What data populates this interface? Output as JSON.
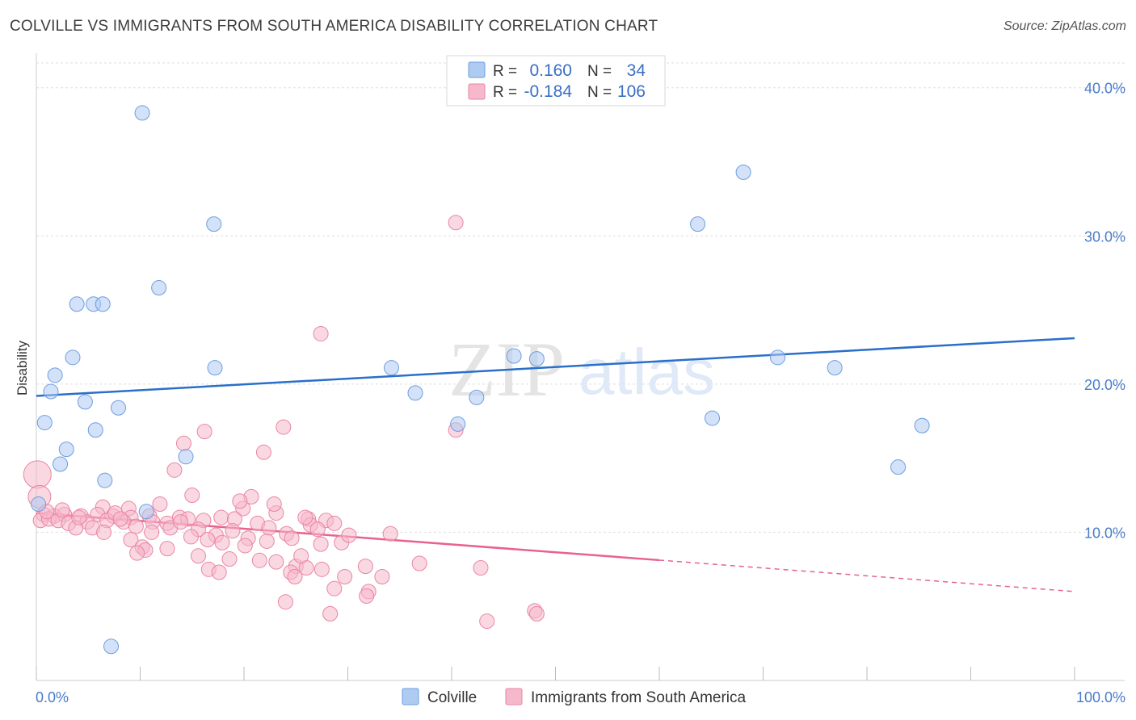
{
  "title": "COLVILLE VS IMMIGRANTS FROM SOUTH AMERICA DISABILITY CORRELATION CHART",
  "source": "Source: ZipAtlas.com",
  "watermark": "ZIPatlas",
  "legend": {
    "rows": [
      {
        "r_label": "R =",
        "r_value": "0.160",
        "n_label": "N =",
        "n_value": "34"
      },
      {
        "r_label": "R =",
        "r_value": "-0.184",
        "n_label": "N =",
        "n_value": "106"
      }
    ]
  },
  "colors": {
    "colville_fill": "#aecbf2",
    "colville_stroke": "#6d9ee0",
    "colville_line": "#2a6fc9",
    "immigrants_fill": "#f6b8cb",
    "immigrants_stroke": "#ea85a6",
    "immigrants_line": "#e8628f",
    "tick_text": "#4a7cc9",
    "grid": "#dedede"
  },
  "chart_data": {
    "type": "scatter",
    "title": "COLVILLE VS IMMIGRANTS FROM SOUTH AMERICA DISABILITY CORRELATION CHART",
    "xlabel": "",
    "ylabel": "Disability",
    "xlim": [
      0,
      100
    ],
    "ylim": [
      0,
      42
    ],
    "x_tick_labels": [
      "0.0%",
      "100.0%"
    ],
    "y_ticks": [
      10,
      20,
      30,
      40
    ],
    "y_tick_labels": [
      "10.0%",
      "20.0%",
      "30.0%",
      "40.0%"
    ],
    "grid": true,
    "legend_position": "top-center",
    "series": [
      {
        "name": "Colville",
        "r": 0.16,
        "n": 34,
        "trend": {
          "x": [
            0,
            100
          ],
          "y": [
            19.2,
            23.1
          ],
          "dashed_from": null
        },
        "points": [
          [
            10.2,
            38.3
          ],
          [
            68.1,
            34.3
          ],
          [
            17.1,
            30.8
          ],
          [
            63.7,
            30.8
          ],
          [
            11.8,
            26.5
          ],
          [
            3.9,
            25.4
          ],
          [
            5.5,
            25.4
          ],
          [
            6.4,
            25.4
          ],
          [
            3.5,
            21.8
          ],
          [
            17.2,
            21.1
          ],
          [
            34.2,
            21.1
          ],
          [
            46.0,
            21.9
          ],
          [
            48.2,
            21.7
          ],
          [
            71.4,
            21.8
          ],
          [
            76.9,
            21.1
          ],
          [
            1.8,
            20.6
          ],
          [
            1.4,
            19.5
          ],
          [
            36.5,
            19.4
          ],
          [
            42.4,
            19.1
          ],
          [
            4.7,
            18.8
          ],
          [
            7.9,
            18.4
          ],
          [
            0.8,
            17.4
          ],
          [
            40.6,
            17.3
          ],
          [
            65.1,
            17.7
          ],
          [
            85.3,
            17.2
          ],
          [
            5.7,
            16.9
          ],
          [
            2.9,
            15.6
          ],
          [
            14.4,
            15.1
          ],
          [
            2.3,
            14.6
          ],
          [
            6.6,
            13.5
          ],
          [
            83.0,
            14.4
          ],
          [
            0.2,
            11.9
          ],
          [
            10.6,
            11.4
          ],
          [
            7.2,
            2.3
          ]
        ]
      },
      {
        "name": "Immigrants from South America",
        "r": -0.184,
        "n": 106,
        "trend": {
          "x": [
            0,
            100
          ],
          "y": [
            11.3,
            6.0
          ],
          "dashed_from": 60
        },
        "points": [
          [
            40.4,
            30.9
          ],
          [
            27.4,
            23.4
          ],
          [
            23.8,
            17.1
          ],
          [
            40.4,
            16.9
          ],
          [
            16.2,
            16.8
          ],
          [
            14.2,
            16.0
          ],
          [
            21.9,
            15.4
          ],
          [
            0.1,
            13.9
          ],
          [
            13.3,
            14.2
          ],
          [
            0.3,
            12.4
          ],
          [
            15.0,
            12.5
          ],
          [
            20.7,
            12.4
          ],
          [
            11.9,
            11.9
          ],
          [
            6.4,
            11.7
          ],
          [
            8.9,
            11.6
          ],
          [
            19.9,
            11.6
          ],
          [
            23.1,
            11.3
          ],
          [
            0.7,
            11.2
          ],
          [
            1.7,
            11.1
          ],
          [
            2.7,
            11.2
          ],
          [
            4.3,
            11.1
          ],
          [
            5.9,
            11.2
          ],
          [
            7.4,
            11.1
          ],
          [
            9.1,
            11.0
          ],
          [
            10.9,
            11.1
          ],
          [
            13.8,
            11.0
          ],
          [
            14.6,
            10.9
          ],
          [
            17.8,
            11.0
          ],
          [
            26.2,
            10.9
          ],
          [
            0.4,
            10.8
          ],
          [
            1.2,
            10.9
          ],
          [
            2.1,
            10.8
          ],
          [
            3.1,
            10.6
          ],
          [
            4.9,
            10.7
          ],
          [
            6.8,
            10.8
          ],
          [
            8.4,
            10.7
          ],
          [
            11.2,
            10.7
          ],
          [
            12.6,
            10.6
          ],
          [
            16.1,
            10.8
          ],
          [
            19.1,
            10.9
          ],
          [
            21.3,
            10.6
          ],
          [
            27.9,
            10.8
          ],
          [
            28.7,
            10.6
          ],
          [
            3.8,
            10.3
          ],
          [
            5.4,
            10.3
          ],
          [
            9.6,
            10.4
          ],
          [
            12.9,
            10.3
          ],
          [
            15.6,
            10.2
          ],
          [
            18.9,
            10.1
          ],
          [
            22.4,
            10.3
          ],
          [
            26.4,
            10.5
          ],
          [
            27.1,
            10.2
          ],
          [
            6.5,
            10.0
          ],
          [
            11.1,
            10.0
          ],
          [
            17.3,
            9.8
          ],
          [
            20.4,
            9.6
          ],
          [
            24.1,
            9.9
          ],
          [
            34.1,
            9.9
          ],
          [
            9.1,
            9.5
          ],
          [
            16.5,
            9.5
          ],
          [
            17.9,
            9.3
          ],
          [
            20.1,
            9.1
          ],
          [
            22.2,
            9.4
          ],
          [
            24.6,
            9.6
          ],
          [
            27.4,
            9.2
          ],
          [
            29.4,
            9.3
          ],
          [
            10.2,
            9.0
          ],
          [
            10.5,
            8.8
          ],
          [
            12.6,
            8.9
          ],
          [
            9.7,
            8.6
          ],
          [
            15.6,
            8.4
          ],
          [
            18.6,
            8.2
          ],
          [
            21.5,
            8.1
          ],
          [
            23.1,
            8.0
          ],
          [
            25.0,
            7.7
          ],
          [
            26.0,
            7.6
          ],
          [
            27.5,
            7.5
          ],
          [
            31.7,
            7.7
          ],
          [
            36.9,
            7.9
          ],
          [
            42.8,
            7.6
          ],
          [
            16.6,
            7.5
          ],
          [
            17.6,
            7.3
          ],
          [
            24.5,
            7.3
          ],
          [
            24.9,
            7.0
          ],
          [
            29.7,
            7.0
          ],
          [
            33.3,
            7.0
          ],
          [
            28.7,
            6.2
          ],
          [
            32.0,
            6.0
          ],
          [
            31.8,
            5.7
          ],
          [
            24.0,
            5.3
          ],
          [
            28.3,
            4.5
          ],
          [
            48.0,
            4.7
          ],
          [
            48.2,
            4.5
          ],
          [
            43.4,
            4.0
          ],
          [
            25.5,
            8.4
          ],
          [
            2.5,
            11.5
          ],
          [
            7.6,
            11.3
          ],
          [
            13.9,
            10.7
          ],
          [
            19.6,
            12.1
          ],
          [
            22.9,
            11.9
          ],
          [
            25.9,
            11.0
          ],
          [
            30.1,
            9.8
          ],
          [
            4.1,
            11.0
          ],
          [
            8.1,
            10.9
          ],
          [
            1.0,
            11.4
          ],
          [
            14.9,
            9.7
          ]
        ]
      }
    ]
  },
  "bottom_legend": [
    "Colville",
    "Immigrants from South America"
  ]
}
